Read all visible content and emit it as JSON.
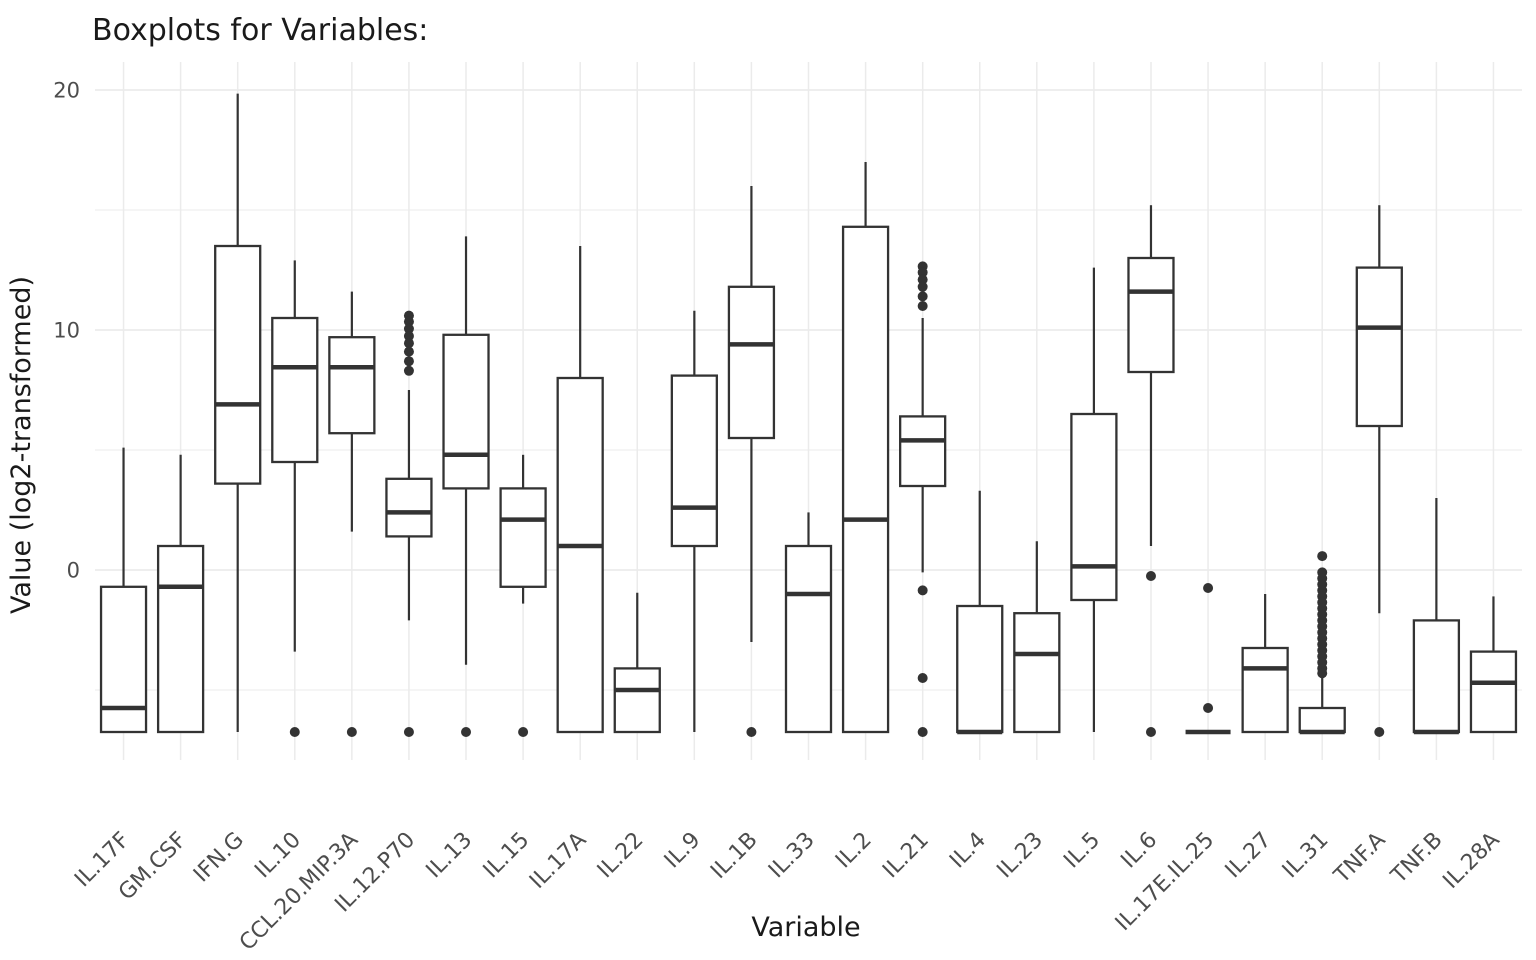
{
  "chart_data": {
    "type": "boxplot",
    "title": "Boxplots for Variables:",
    "xlabel": "Variable",
    "ylabel": "Value (log2-transformed)",
    "y_axis": {
      "ticks": [
        20,
        10,
        0
      ],
      "minor_gridlines": [
        15,
        5,
        -5
      ],
      "range": [
        -7.9,
        21.2
      ]
    },
    "grid": true,
    "legend": false,
    "floor_value": -6.75,
    "categories": [
      "IL.17F",
      "GM.CSF",
      "IFN.G",
      "IL.10",
      "CCL.20.MIP.3A",
      "IL.12.P70",
      "IL.13",
      "IL.15",
      "IL.17A",
      "IL.22",
      "IL.9",
      "IL.1B",
      "IL.33",
      "IL.2",
      "IL.21",
      "IL.4",
      "IL.23",
      "IL.5",
      "IL.6",
      "IL.17E.IL.25",
      "IL.27",
      "IL.31",
      "TNF.A",
      "TNF.B",
      "IL.28A"
    ],
    "series": [
      {
        "name": "IL.17F",
        "whisker_low": -6.75,
        "q1": -6.75,
        "median": -5.75,
        "q3": -0.7,
        "whisker_high": 5.1,
        "outliers": []
      },
      {
        "name": "GM.CSF",
        "whisker_low": -6.75,
        "q1": -6.75,
        "median": -0.7,
        "q3": 1.0,
        "whisker_high": 4.8,
        "outliers": []
      },
      {
        "name": "IFN.G",
        "whisker_low": -6.75,
        "q1": 3.6,
        "median": 6.9,
        "q3": 13.5,
        "whisker_high": 19.85,
        "outliers": []
      },
      {
        "name": "IL.10",
        "whisker_low": -3.4,
        "q1": 4.5,
        "median": 8.45,
        "q3": 10.5,
        "whisker_high": 12.9,
        "outliers": [
          -6.75
        ]
      },
      {
        "name": "CCL.20.MIP.3A",
        "whisker_low": 1.6,
        "q1": 5.7,
        "median": 8.45,
        "q3": 9.7,
        "whisker_high": 11.6,
        "outliers": [
          -6.75
        ]
      },
      {
        "name": "IL.12.P70",
        "whisker_low": -2.1,
        "q1": 1.4,
        "median": 2.4,
        "q3": 3.8,
        "whisker_high": 7.5,
        "outliers": [
          10.6,
          10.35,
          10.05,
          9.75,
          9.45,
          9.1,
          8.7,
          8.3,
          -6.75
        ]
      },
      {
        "name": "IL.13",
        "whisker_low": -3.95,
        "q1": 3.4,
        "median": 4.8,
        "q3": 9.8,
        "whisker_high": 13.9,
        "outliers": [
          -6.75
        ]
      },
      {
        "name": "IL.15",
        "whisker_low": -1.4,
        "q1": -0.7,
        "median": 2.1,
        "q3": 3.4,
        "whisker_high": 4.8,
        "outliers": [
          -6.75
        ]
      },
      {
        "name": "IL.17A",
        "whisker_low": -6.75,
        "q1": -6.75,
        "median": 1.0,
        "q3": 8.0,
        "whisker_high": 13.5,
        "outliers": []
      },
      {
        "name": "IL.22",
        "whisker_low": -6.75,
        "q1": -6.75,
        "median": -5.0,
        "q3": -4.1,
        "whisker_high": -0.95,
        "outliers": []
      },
      {
        "name": "IL.9",
        "whisker_low": -6.75,
        "q1": 1.0,
        "median": 2.6,
        "q3": 8.1,
        "whisker_high": 10.8,
        "outliers": []
      },
      {
        "name": "IL.1B",
        "whisker_low": -3.0,
        "q1": 5.5,
        "median": 9.4,
        "q3": 11.8,
        "whisker_high": 16.0,
        "outliers": [
          -6.75
        ]
      },
      {
        "name": "IL.33",
        "whisker_low": -6.75,
        "q1": -6.75,
        "median": -1.0,
        "q3": 1.0,
        "whisker_high": 2.4,
        "outliers": []
      },
      {
        "name": "IL.2",
        "whisker_low": -6.75,
        "q1": -6.75,
        "median": 2.1,
        "q3": 14.3,
        "whisker_high": 17.0,
        "outliers": []
      },
      {
        "name": "IL.21",
        "whisker_low": -0.1,
        "q1": 3.5,
        "median": 5.4,
        "q3": 6.4,
        "whisker_high": 10.5,
        "outliers": [
          12.65,
          12.4,
          12.1,
          11.8,
          11.4,
          11.0,
          -0.85,
          -4.5,
          -6.75
        ]
      },
      {
        "name": "IL.4",
        "whisker_low": -6.75,
        "q1": -6.75,
        "median": -6.75,
        "q3": -1.5,
        "whisker_high": 3.3,
        "outliers": []
      },
      {
        "name": "IL.23",
        "whisker_low": -6.75,
        "q1": -6.75,
        "median": -3.5,
        "q3": -1.8,
        "whisker_high": 1.2,
        "outliers": []
      },
      {
        "name": "IL.5",
        "whisker_low": -6.75,
        "q1": -1.25,
        "median": 0.15,
        "q3": 6.5,
        "whisker_high": 12.6,
        "outliers": []
      },
      {
        "name": "IL.6",
        "whisker_low": 1.0,
        "q1": 8.25,
        "median": 11.6,
        "q3": 13.0,
        "whisker_high": 15.2,
        "outliers": [
          -0.25,
          -6.75
        ]
      },
      {
        "name": "IL.17E.IL.25",
        "whisker_low": -6.75,
        "q1": -6.75,
        "median": -6.75,
        "q3": -6.75,
        "whisker_high": -6.75,
        "outliers": [
          -0.75,
          -5.75
        ]
      },
      {
        "name": "IL.27",
        "whisker_low": -6.75,
        "q1": -6.75,
        "median": -4.1,
        "q3": -3.25,
        "whisker_high": -1.0,
        "outliers": []
      },
      {
        "name": "IL.31",
        "whisker_low": -6.75,
        "q1": -6.75,
        "median": -6.75,
        "q3": -5.75,
        "whisker_high": -4.4,
        "outliers": [
          0.58,
          -0.1,
          -0.35,
          -0.6,
          -0.85,
          -1.1,
          -1.35,
          -1.6,
          -1.85,
          -2.1,
          -2.35,
          -2.6,
          -2.85,
          -3.1,
          -3.35,
          -3.6,
          -3.85,
          -4.1,
          -4.3
        ]
      },
      {
        "name": "TNF.A",
        "whisker_low": -1.8,
        "q1": 6.0,
        "median": 10.1,
        "q3": 12.6,
        "whisker_high": 15.2,
        "outliers": [
          -6.75
        ]
      },
      {
        "name": "TNF.B",
        "whisker_low": -6.75,
        "q1": -6.75,
        "median": -6.75,
        "q3": -2.1,
        "whisker_high": 3.0,
        "outliers": []
      },
      {
        "name": "IL.28A",
        "whisker_low": -6.75,
        "q1": -6.75,
        "median": -4.7,
        "q3": -3.4,
        "whisker_high": -1.1,
        "outliers": []
      }
    ]
  },
  "style": {
    "background": "#FFFFFF",
    "box_stroke": "#333333",
    "box_fill": "#FFFFFF",
    "outlier_color": "#333333",
    "gridline_color": "#EBEBEB",
    "tick_label_color": "#4D4D4D",
    "title_color": "#1A1A1A"
  }
}
